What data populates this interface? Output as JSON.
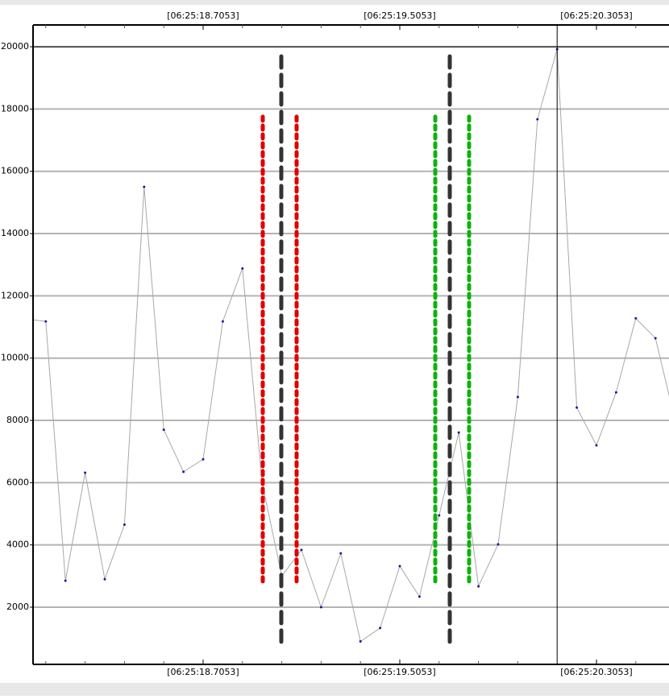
{
  "chart_data": {
    "type": "line",
    "x": [
      17.9853,
      18.0653,
      18.1453,
      18.2253,
      18.3053,
      18.3853,
      18.4653,
      18.5453,
      18.6253,
      18.7053,
      18.7853,
      18.8653,
      18.9453,
      19.0253,
      19.1053,
      19.1853,
      19.2653,
      19.3453,
      19.4253,
      19.5053,
      19.5853,
      19.6653,
      19.7453,
      19.8253,
      19.9053,
      19.9853,
      20.0653,
      20.1453,
      20.2253,
      20.3053,
      20.3853,
      20.4653,
      20.5453,
      20.6253
    ],
    "series": [
      {
        "color": "#a8a8a8",
        "point_color": "#1a1aa0",
        "values": [
          11260,
          11180,
          2850,
          6320,
          2900,
          4650,
          15500,
          7700,
          6350,
          6750,
          11180,
          12880,
          6000,
          3000,
          3840,
          2000,
          3730,
          900,
          1330,
          3320,
          2340,
          4950,
          7610,
          2670,
          4020,
          8750,
          17670,
          19920,
          8410,
          7200,
          8900,
          11280,
          10640,
          8000
        ]
      }
    ],
    "xlim": [
      18.0135,
      20.6004
    ],
    "xticks": [
      {
        "value": 18.7053,
        "label": "[06:25:18.7053]"
      },
      {
        "value": 19.5053,
        "label": "[06:25:19.5053]"
      },
      {
        "value": 20.3053,
        "label": "[06:25:20.3053]"
      }
    ],
    "xminorticks": [
      18.0653,
      18.2253,
      18.3853,
      18.5453,
      18.8653,
      19.0253,
      19.1853,
      19.3453,
      19.6653,
      19.8253,
      19.9853,
      20.4653
    ],
    "ylim": [
      164,
      20700
    ],
    "yticks": [
      2000,
      4000,
      6000,
      8000,
      10000,
      12000,
      14000,
      16000,
      18000,
      20000
    ],
    "grid": true,
    "markers": [
      {
        "x": 18.9479,
        "y": [
          2830,
          17830
        ],
        "color": "#e00000"
      },
      {
        "x": 19.0233,
        "y": [
          890,
          19690
        ],
        "color": "#333333"
      },
      {
        "x": 19.0856,
        "y": [
          2830,
          17830
        ],
        "color": "#e00000"
      },
      {
        "x": 19.6496,
        "y": [
          2830,
          17830
        ],
        "color": "#10b010"
      },
      {
        "x": 19.7086,
        "y": [
          890,
          19690
        ],
        "color": "#333333"
      },
      {
        "x": 19.7873,
        "y": [
          2830,
          17830
        ],
        "color": "#10b010"
      }
    ],
    "cursor_x": 20.1453,
    "reference_y": 20000
  }
}
